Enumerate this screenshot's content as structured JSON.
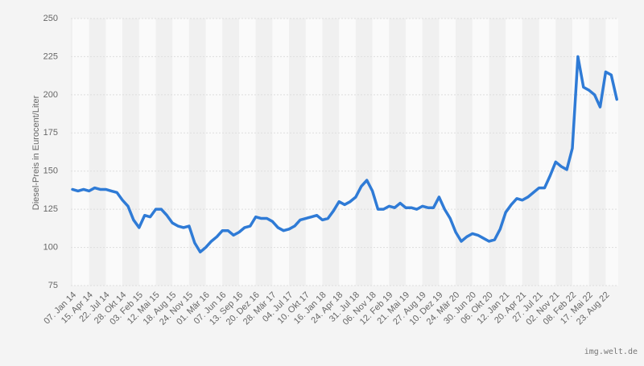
{
  "chart_data": {
    "type": "line",
    "y_label": "Diesel-Preis in Eurocent/Liter",
    "credit": "img.welt.de",
    "categories": [
      "07. Jan 14",
      null,
      null,
      "15. Apr 14",
      null,
      null,
      "22. Jul 14",
      null,
      null,
      "28. Okt 14",
      null,
      null,
      "03. Feb 15",
      null,
      null,
      "12. Mai 15",
      null,
      null,
      "18. Aug 15",
      null,
      null,
      "24. Nov 15",
      null,
      null,
      "01. Mär 16",
      null,
      null,
      "07. Jun 16",
      null,
      null,
      "13. Sep 16",
      null,
      null,
      "20. Dez 16",
      null,
      null,
      "28. Mär 17",
      null,
      null,
      "04. Jul 17",
      null,
      null,
      "10. Okt 17",
      null,
      null,
      "16. Jan 18",
      null,
      null,
      "24. Apr 18",
      null,
      null,
      "31. Jul 18",
      null,
      null,
      "06. Nov 18",
      null,
      null,
      "12. Feb 19",
      null,
      null,
      "21. Mai 19",
      null,
      null,
      "27. Aug 19",
      null,
      null,
      "10. Dez 19",
      null,
      null,
      "24. Mär 20",
      null,
      null,
      "30. Jun 20",
      null,
      null,
      "06. Okt 20",
      null,
      null,
      "12. Jan 21",
      null,
      null,
      "20. Apr 21",
      null,
      null,
      "27. Jul 21",
      null,
      null,
      "02. Nov 21",
      null,
      null,
      "08. Feb 22",
      null,
      null,
      "17. Mai 22",
      null,
      null,
      "23. Aug 22",
      null,
      null
    ],
    "series": [
      {
        "name": "Diesel",
        "color": "#2f7bd6",
        "values": [
          138,
          137,
          138,
          137,
          139,
          138,
          138,
          137,
          136,
          131,
          127,
          118,
          113,
          121,
          120,
          125,
          125,
          121,
          116,
          114,
          113,
          114,
          103,
          97,
          100,
          104,
          107,
          111,
          111,
          108,
          110,
          113,
          114,
          120,
          119,
          119,
          117,
          113,
          111,
          112,
          114,
          118,
          119,
          120,
          121,
          118,
          119,
          124,
          130,
          128,
          130,
          133,
          140,
          144,
          137,
          125,
          125,
          127,
          126,
          129,
          126,
          126,
          125,
          127,
          126,
          126,
          133,
          125,
          119,
          110,
          104,
          107,
          109,
          108,
          106,
          104,
          105,
          112,
          123,
          128,
          132,
          131,
          133,
          136,
          139,
          139,
          147,
          156,
          153,
          151,
          165,
          225,
          205,
          203,
          200,
          192,
          215,
          213,
          197
        ]
      }
    ],
    "ylim": [
      75,
      250
    ],
    "yticks": [
      75,
      100,
      125,
      150,
      175,
      200,
      225,
      250
    ],
    "grid": true
  }
}
